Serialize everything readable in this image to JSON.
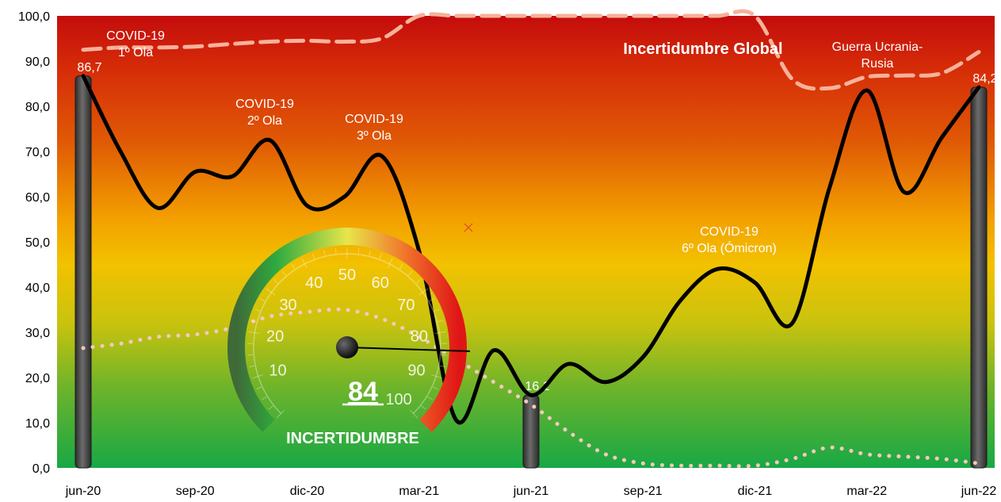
{
  "chart_data": {
    "type": "line",
    "title": "Incertidumbre Global",
    "ylim": [
      0,
      100
    ],
    "y_ticks": [
      "0,0",
      "10,0",
      "20,0",
      "30,0",
      "40,0",
      "50,0",
      "60,0",
      "70,0",
      "80,0",
      "90,0",
      "100,0"
    ],
    "x_ticks": [
      "jun-20",
      "sep-20",
      "dic-20",
      "mar-21",
      "jun-21",
      "sep-21",
      "dic-21",
      "mar-22",
      "jun-22"
    ],
    "x_range": [
      "2020-06",
      "2022-06"
    ],
    "background": "vertical gradient from red (100) through orange/yellow to green (0)",
    "grid": false,
    "series": [
      {
        "style": "solid black thick smooth line",
        "color": "#000000",
        "x": [
          "2020-06",
          "2020-07",
          "2020-08",
          "2020-09",
          "2020-10",
          "2020-11",
          "2020-12",
          "2021-01",
          "2021-02",
          "2021-03",
          "2021-04",
          "2021-05",
          "2021-06",
          "2021-07",
          "2021-08",
          "2021-09",
          "2021-10",
          "2021-11",
          "2021-12",
          "2022-01",
          "2022-02",
          "2022-03",
          "2022-04",
          "2022-05",
          "2022-06"
        ],
        "values": [
          86.7,
          70,
          57.5,
          65.5,
          64.5,
          72.5,
          58,
          60,
          69,
          48,
          10.5,
          26,
          16.1,
          23,
          19,
          24.5,
          37,
          44,
          41,
          32,
          62,
          83.5,
          61,
          73,
          84.2
        ]
      },
      {
        "style": "dashed salmon line",
        "color": "#f7b19a",
        "x": [
          "2020-06",
          "2020-07",
          "2020-08",
          "2020-09",
          "2020-10",
          "2020-11",
          "2020-12",
          "2021-01",
          "2021-02",
          "2021-03",
          "2021-04",
          "2021-05",
          "2021-06",
          "2021-07",
          "2021-08",
          "2021-09",
          "2021-10",
          "2021-11",
          "2021-12",
          "2022-01",
          "2022-02",
          "2022-03",
          "2022-04",
          "2022-05",
          "2022-06"
        ],
        "values": [
          92.5,
          93,
          93,
          93.2,
          93.8,
          94.3,
          94.5,
          94.3,
          95,
          100,
          101,
          101,
          101,
          101,
          101,
          101,
          101,
          101,
          100,
          86,
          84,
          86.5,
          86.8,
          87.3,
          92
        ]
      },
      {
        "style": "dotted pink line",
        "color": "#f6c8bf",
        "x": [
          "2020-06",
          "2020-07",
          "2020-08",
          "2020-09",
          "2020-10",
          "2020-11",
          "2020-12",
          "2021-01",
          "2021-02",
          "2021-03",
          "2021-04",
          "2021-05",
          "2021-06",
          "2021-07",
          "2021-08",
          "2021-09",
          "2021-10",
          "2021-11",
          "2021-12",
          "2022-01",
          "2022-02",
          "2022-03",
          "2022-04",
          "2022-05",
          "2022-06"
        ],
        "values": [
          26.5,
          27.5,
          29,
          29.5,
          31,
          33.5,
          34.5,
          35,
          33,
          29,
          24,
          19,
          14,
          8,
          3,
          1,
          0.5,
          0.5,
          0.5,
          2,
          4.5,
          3,
          2.5,
          2,
          1
        ]
      }
    ],
    "bars": [
      {
        "x": "2020-06",
        "value": 86.7,
        "label": "86,7"
      },
      {
        "x": "2021-06",
        "value": 16.1,
        "label": "16,1"
      },
      {
        "x": "2022-06",
        "value": 84.2,
        "label": "84,2"
      }
    ],
    "annotations": [
      {
        "id": "covid1",
        "lines": [
          "COVID-19",
          "1º Ola"
        ]
      },
      {
        "id": "covid2",
        "lines": [
          "COVID-19",
          "2º Ola"
        ]
      },
      {
        "id": "covid3",
        "lines": [
          "COVID-19",
          "3º Ola"
        ]
      },
      {
        "id": "covid6",
        "lines": [
          "COVID-19",
          "6º Ola (Ómicron)"
        ]
      },
      {
        "id": "guerra",
        "lines": [
          "Guerra Ucrania-",
          "Rusia"
        ]
      }
    ],
    "gauge": {
      "value": 84,
      "value_label": "84",
      "label": "INCERTIDUMBRE",
      "ticks": [
        "10",
        "20",
        "30",
        "40",
        "50",
        "60",
        "70",
        "80",
        "90",
        "100"
      ]
    }
  }
}
